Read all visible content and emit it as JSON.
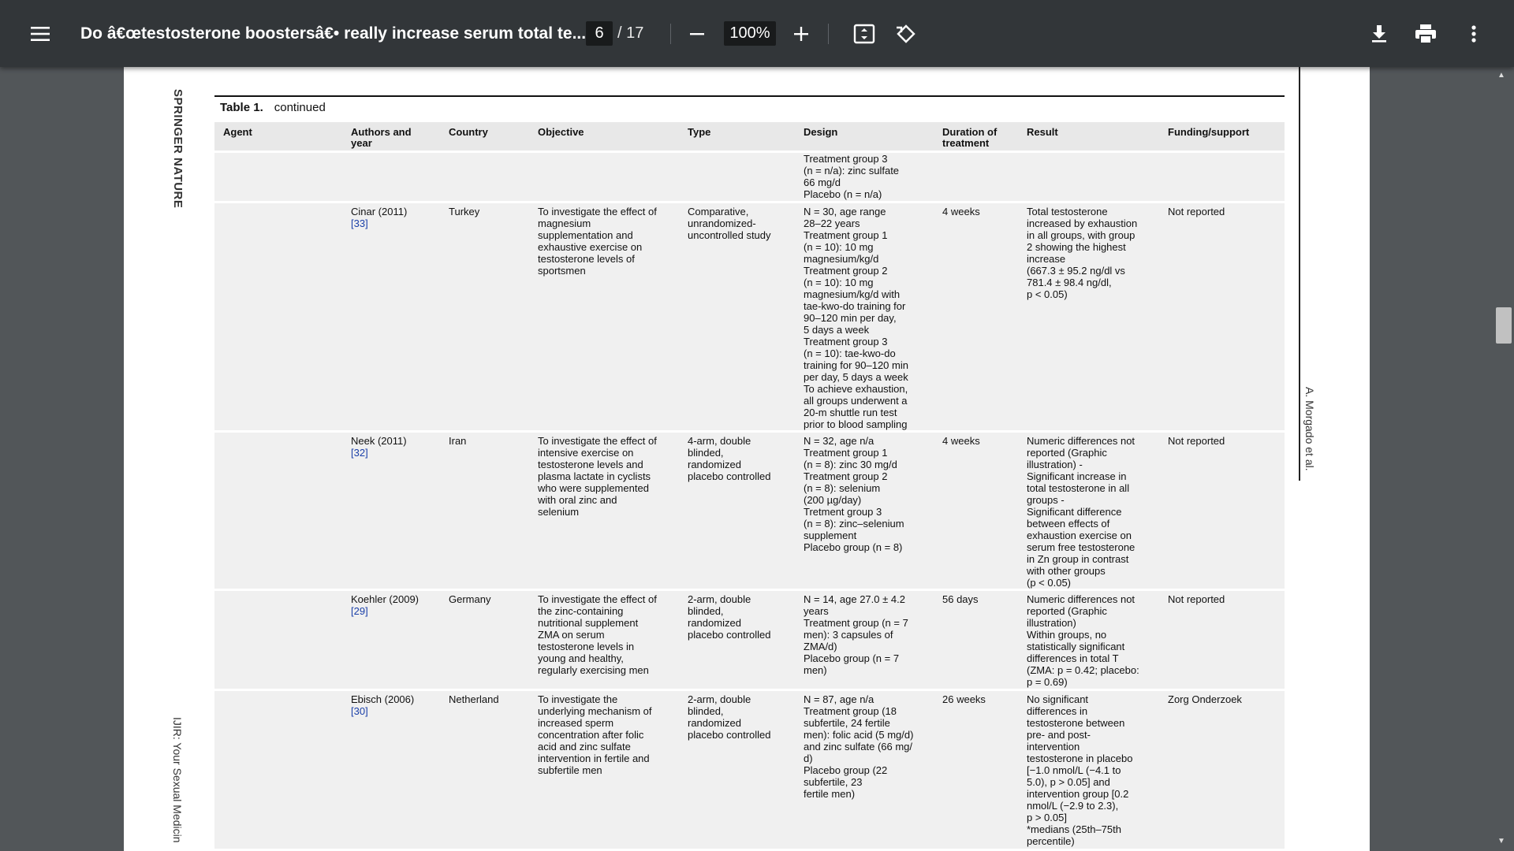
{
  "toolbar": {
    "title": "Do â€œtestosterone boostersâ€• really increase serum total te...",
    "current_page": "6",
    "total_pages": "/ 17",
    "zoom": "100%",
    "icons": [
      "menu-icon",
      "zoom-out-icon",
      "zoom-in-icon",
      "fit-page-icon",
      "rotate-icon",
      "download-icon",
      "print-icon",
      "more-icon"
    ]
  },
  "page": {
    "side_left_top": "SPRINGER NATURE",
    "side_left_bottom": "IJIR: Your Sexual Medicin",
    "side_right": "A. Morgado et al.",
    "caption_label": "Table 1.",
    "caption_text": "continued"
  },
  "table": {
    "headers": {
      "agent": "Agent",
      "authors": "Authors and\nyear",
      "country": "Country",
      "objective": "Objective",
      "type": "Type",
      "design": "Design",
      "duration": "Duration of\ntreatment",
      "result": "Result",
      "funding": "Funding/support"
    },
    "rows": [
      {
        "authors": "",
        "ref": "",
        "country": "",
        "objective": "",
        "type": "",
        "design": "Treatment group 3\n(n = n/a): zinc sulfate\n66 mg/d\nPlacebo (n = n/a)",
        "duration": "",
        "result": "",
        "funding": ""
      },
      {
        "authors": "Cinar (2011)",
        "ref": "[33]",
        "country": "Turkey",
        "objective": "To investigate the effect of\nmagnesium\nsupplementation and\nexhaustive exercise on\ntestosterone levels of\nsportsmen",
        "type": "Comparative,\nunrandomized-\nuncontrolled study",
        "design": "N = 30, age range\n28–22 years\nTreatment group 1\n(n = 10): 10 mg\nmagnesium/kg/d\nTreatment group 2\n(n = 10): 10 mg\nmagnesium/kg/d with\ntae-kwo-do training for\n90–120 min per day,\n5 days a week\nTreatment group 3\n(n = 10): tae-kwo-do\ntraining for 90–120 min\nper day, 5 days a week\nTo achieve exhaustion,\nall groups underwent a\n20-m shuttle run test\nprior to blood sampling",
        "duration": "4 weeks",
        "result": "Total testosterone\nincreased by exhaustion\nin all groups, with group\n2 showing the highest\nincrease\n(667.3 ± 95.2 ng/dl vs\n781.4 ± 98.4 ng/dl,\np < 0.05)",
        "funding": "Not reported"
      },
      {
        "authors": "Neek (2011)",
        "ref": "[32]",
        "country": "Iran",
        "objective": "To investigate the effect of\nintensive exercise on\ntestosterone levels and\nplasma lactate in cyclists\nwho were supplemented\nwith oral zinc and\nselenium",
        "type": "4-arm, double\nblinded,\nrandomized\nplacebo controlled",
        "design": "N = 32, age n/a\nTreatment group 1\n(n = 8): zinc 30 mg/d\nTreatment group 2\n(n = 8): selenium\n(200 µg/day)\nTretment group 3\n(n = 8): zinc–selenium\nsupplement\nPlacebo group (n = 8)",
        "duration": "4 weeks",
        "result": "Numeric differences not\nreported (Graphic\nillustration) -\nSignificant increase in\ntotal testosterone in all\ngroups -\nSignificant difference\nbetween effects of\nexhaustion exercise on\nserum free testosterone\nin Zn group in contrast\nwith other groups\n(p < 0.05)",
        "funding": "Not reported"
      },
      {
        "authors": "Koehler (2009)",
        "ref": "[29]",
        "country": "Germany",
        "objective": "To investigate the effect of\nthe zinc-containing\nnutritional supplement\nZMA on serum\ntestosterone levels in\nyoung and healthy,\nregularly exercising men",
        "type": "2-arm, double\nblinded,\nrandomized\nplacebo controlled",
        "design": "N = 14, age 27.0 ± 4.2\nyears\nTreatment group (n = 7\nmen): 3 capsules of\nZMA/d)\nPlacebo group (n = 7\nmen)",
        "duration": "56 days",
        "result": "Numeric differences not\nreported (Graphic\nillustration)\nWithin groups, no\nstatistically significant\ndifferences in total T\n(ZMA: p = 0.42; placebo:\np = 0.69)",
        "funding": "Not reported"
      },
      {
        "authors": "Ebisch (2006)",
        "ref": "[30]",
        "country": "Netherland",
        "objective": "To investigate the\nunderlying mechanism of\nincreased sperm\nconcentration after folic\nacid and zinc sulfate\nintervention in fertile and\nsubfertile men",
        "type": "2-arm, double\nblinded,\nrandomized\nplacebo controlled",
        "design": "N = 87, age n/a\nTreatment group (18\nsubfertile, 24 fertile\nmen): folic acid (5 mg/d)\nand zinc sulfate (66 mg/\nd)\nPlacebo group (22\nsubfertile, 23\nfertile men)",
        "duration": "26 weeks",
        "result": "No significant\ndifferences in\ntestosterone between\npre- and post-\nintervention\ntestosterone in placebo\n[−1.0 nmol/L (−4.1 to\n5.0), p > 0.05] and\nintervention group [0.2\nnmol/L (−2.9 to 2.3),\np > 0.05]\n*medians (25th–75th\npercentile)",
        "funding": "Zorg Onderzoek"
      }
    ]
  }
}
